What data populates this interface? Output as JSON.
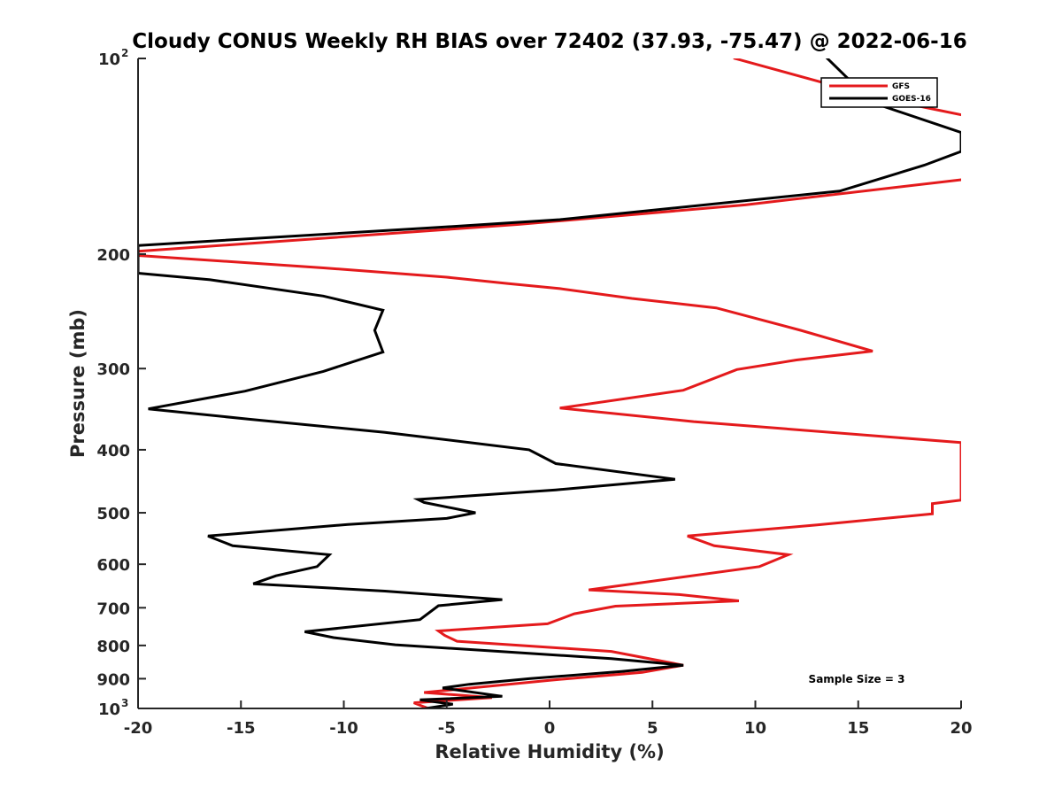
{
  "chart_data": {
    "type": "line",
    "title": "Cloudy CONUS Weekly RH BIAS over 72402 (37.93, -75.47) @ 2022-06-16",
    "xlabel": "Relative Humidity (%)",
    "ylabel": "Pressure (mb)",
    "xlim": [
      -20,
      20
    ],
    "ylim": [
      100,
      1000
    ],
    "y_scale": "log",
    "y_reversed": true,
    "x_ticks": [
      "-20",
      "-15",
      "-10",
      "-5",
      "0",
      "5",
      "10",
      "15",
      "20"
    ],
    "y_ticks": [
      {
        "value": 100,
        "label": "10",
        "sup": "2"
      },
      {
        "value": 200,
        "label": "200",
        "sup": ""
      },
      {
        "value": 300,
        "label": "300",
        "sup": ""
      },
      {
        "value": 400,
        "label": "400",
        "sup": ""
      },
      {
        "value": 500,
        "label": "500",
        "sup": ""
      },
      {
        "value": 600,
        "label": "600",
        "sup": ""
      },
      {
        "value": 700,
        "label": "700",
        "sup": ""
      },
      {
        "value": 800,
        "label": "800",
        "sup": ""
      },
      {
        "value": 900,
        "label": "900",
        "sup": ""
      },
      {
        "value": 1000,
        "label": "10",
        "sup": "3"
      }
    ],
    "grid": false,
    "legend_position": "top-right",
    "annotation": "Sample Size = 3",
    "series": [
      {
        "name": "GFS",
        "color": "#e41a1c",
        "points": [
          {
            "x": 9.0,
            "p": 100
          },
          {
            "x": 16.0,
            "p": 115
          },
          {
            "x": 20.5,
            "p": 123
          },
          {
            "x": 20.5,
            "p": 153
          },
          {
            "x": 9.5,
            "p": 168
          },
          {
            "x": -1.5,
            "p": 180
          },
          {
            "x": -20.0,
            "p": 198
          },
          {
            "x": -20.0,
            "p": 201
          },
          {
            "x": -11.0,
            "p": 210
          },
          {
            "x": -5.0,
            "p": 217
          },
          {
            "x": -2.0,
            "p": 222
          },
          {
            "x": 0.5,
            "p": 226
          },
          {
            "x": 4.0,
            "p": 234
          },
          {
            "x": 8.1,
            "p": 242
          },
          {
            "x": 12.2,
            "p": 262
          },
          {
            "x": 15.7,
            "p": 282
          },
          {
            "x": 12.0,
            "p": 291
          },
          {
            "x": 9.1,
            "p": 301
          },
          {
            "x": 6.5,
            "p": 324
          },
          {
            "x": 0.5,
            "p": 345
          },
          {
            "x": 7.0,
            "p": 362
          },
          {
            "x": 20.0,
            "p": 390
          },
          {
            "x": 20.0,
            "p": 478
          },
          {
            "x": 18.6,
            "p": 484
          },
          {
            "x": 18.6,
            "p": 502
          },
          {
            "x": 13.0,
            "p": 522
          },
          {
            "x": 6.7,
            "p": 543
          },
          {
            "x": 8.0,
            "p": 562
          },
          {
            "x": 11.6,
            "p": 580
          },
          {
            "x": 10.2,
            "p": 605
          },
          {
            "x": 1.9,
            "p": 657
          },
          {
            "x": 6.3,
            "p": 668
          },
          {
            "x": 9.2,
            "p": 683
          },
          {
            "x": 3.2,
            "p": 696
          },
          {
            "x": 1.2,
            "p": 715
          },
          {
            "x": -0.1,
            "p": 741
          },
          {
            "x": -5.4,
            "p": 760
          },
          {
            "x": -5.1,
            "p": 772
          },
          {
            "x": -4.5,
            "p": 788
          },
          {
            "x": 3.0,
            "p": 817
          },
          {
            "x": 6.5,
            "p": 858
          },
          {
            "x": 4.5,
            "p": 880
          },
          {
            "x": 0.0,
            "p": 905
          },
          {
            "x": -6.1,
            "p": 945
          },
          {
            "x": -2.8,
            "p": 962
          },
          {
            "x": -6.6,
            "p": 980
          },
          {
            "x": -5.9,
            "p": 1000
          }
        ]
      },
      {
        "name": "GOES-16",
        "color": "#000000",
        "points": [
          {
            "x": 13.5,
            "p": 100
          },
          {
            "x": 15.7,
            "p": 117
          },
          {
            "x": 20.0,
            "p": 130
          },
          {
            "x": 20.0,
            "p": 139
          },
          {
            "x": 18.2,
            "p": 146
          },
          {
            "x": 14.1,
            "p": 160
          },
          {
            "x": 0.5,
            "p": 177
          },
          {
            "x": -5.5,
            "p": 182
          },
          {
            "x": -20.0,
            "p": 194
          },
          {
            "x": -20.0,
            "p": 214
          },
          {
            "x": -16.5,
            "p": 219
          },
          {
            "x": -11.0,
            "p": 232
          },
          {
            "x": -8.1,
            "p": 244
          },
          {
            "x": -8.5,
            "p": 262
          },
          {
            "x": -8.1,
            "p": 283
          },
          {
            "x": -11.0,
            "p": 303
          },
          {
            "x": -14.8,
            "p": 325
          },
          {
            "x": -19.5,
            "p": 346
          },
          {
            "x": -14.6,
            "p": 359
          },
          {
            "x": -8.0,
            "p": 376
          },
          {
            "x": -1.0,
            "p": 400
          },
          {
            "x": 0.3,
            "p": 420
          },
          {
            "x": 6.1,
            "p": 444
          },
          {
            "x": 0.3,
            "p": 461
          },
          {
            "x": -6.4,
            "p": 477
          },
          {
            "x": -6.1,
            "p": 482
          },
          {
            "x": -3.6,
            "p": 500
          },
          {
            "x": -5.0,
            "p": 510
          },
          {
            "x": -9.8,
            "p": 521
          },
          {
            "x": -16.6,
            "p": 543
          },
          {
            "x": -15.4,
            "p": 562
          },
          {
            "x": -10.7,
            "p": 580
          },
          {
            "x": -11.3,
            "p": 605
          },
          {
            "x": -13.3,
            "p": 625
          },
          {
            "x": -14.4,
            "p": 643
          },
          {
            "x": -8.0,
            "p": 660
          },
          {
            "x": -2.3,
            "p": 680
          },
          {
            "x": -5.4,
            "p": 695
          },
          {
            "x": -6.3,
            "p": 730
          },
          {
            "x": -11.9,
            "p": 762
          },
          {
            "x": -10.5,
            "p": 778
          },
          {
            "x": -7.5,
            "p": 798
          },
          {
            "x": -3.0,
            "p": 815
          },
          {
            "x": 3.0,
            "p": 838
          },
          {
            "x": 6.5,
            "p": 858
          },
          {
            "x": 3.5,
            "p": 877
          },
          {
            "x": -1.0,
            "p": 900
          },
          {
            "x": -3.9,
            "p": 918
          },
          {
            "x": -5.2,
            "p": 930
          },
          {
            "x": -2.3,
            "p": 958
          },
          {
            "x": -6.3,
            "p": 970
          },
          {
            "x": -4.7,
            "p": 985
          },
          {
            "x": -6.0,
            "p": 1000
          }
        ]
      }
    ]
  }
}
